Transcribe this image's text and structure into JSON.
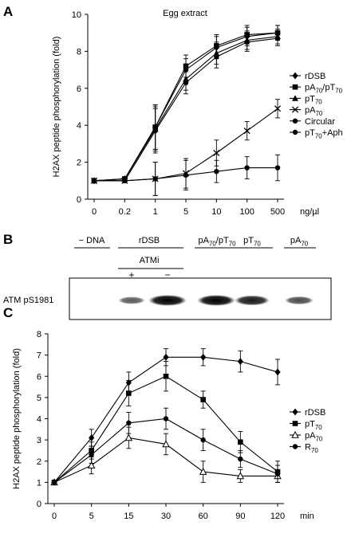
{
  "panels": {
    "a": "A",
    "b": "B",
    "c": "C"
  },
  "chart_data": [
    {
      "panel": "A",
      "type": "line",
      "title": "Egg extract",
      "ylabel": "H2AX peptide phosphorylation (fold)",
      "xunit": "ng/µl",
      "categories": [
        "0",
        "0.2",
        "1",
        "5",
        "10",
        "100",
        "500"
      ],
      "ylim": [
        0,
        10
      ],
      "yticks": [
        0,
        2,
        4,
        6,
        8,
        10
      ],
      "legend_position": "right",
      "series": [
        {
          "name": "rDSB",
          "marker": "diamond",
          "values": [
            1.0,
            1.1,
            3.9,
            7.0,
            8.2,
            8.8,
            9.0
          ],
          "err": [
            0.1,
            0.1,
            1.2,
            0.6,
            0.6,
            0.5,
            0.4
          ]
        },
        {
          "name": "pA70/pT70",
          "sub": [
            "A",
            "70",
            "/pT",
            "70"
          ],
          "marker": "square",
          "values": [
            1.0,
            1.1,
            3.9,
            7.2,
            8.3,
            8.9,
            9.0
          ],
          "err": [
            0.1,
            0.1,
            1.2,
            0.6,
            0.6,
            0.5,
            0.4
          ]
        },
        {
          "name": "pT70",
          "marker": "triangle",
          "values": [
            1.0,
            1.1,
            3.8,
            6.5,
            7.9,
            8.6,
            8.8
          ],
          "err": [
            0.1,
            0.1,
            1.2,
            0.6,
            0.6,
            0.5,
            0.4
          ]
        },
        {
          "name": "pA70",
          "marker": "cross",
          "values": [
            1.0,
            1.0,
            1.1,
            1.4,
            2.5,
            3.7,
            4.9
          ],
          "err": [
            0.1,
            0.1,
            0.9,
            0.8,
            0.7,
            0.5,
            0.5
          ]
        },
        {
          "name": "Circular",
          "marker": "circle",
          "values": [
            1.0,
            1.0,
            3.7,
            6.3,
            7.7,
            8.5,
            8.7
          ],
          "err": [
            0.1,
            0.1,
            1.2,
            0.6,
            0.6,
            0.5,
            0.4
          ]
        },
        {
          "name": "pT70+Aph",
          "marker": "circle",
          "values": [
            1.0,
            1.0,
            1.1,
            1.3,
            1.5,
            1.7,
            1.7
          ],
          "err": [
            0.1,
            0.1,
            0.9,
            0.8,
            0.6,
            0.6,
            0.7
          ]
        }
      ]
    },
    {
      "panel": "B",
      "type": "western-blot",
      "row_label": "ATM pS1981",
      "lanes": [
        {
          "label": "− DNA",
          "intensity": 0.0
        },
        {
          "label": "+",
          "group": "rDSB",
          "subgroup": "ATMi",
          "intensity": 0.45
        },
        {
          "label": "−",
          "group": "rDSB",
          "subgroup": "ATMi",
          "intensity": 1.0
        },
        {
          "label": "pA70/pT70",
          "intensity": 1.0
        },
        {
          "label": "pT70",
          "intensity": 0.85
        },
        {
          "label": "pA70",
          "intensity": 0.55
        }
      ],
      "group_labels": {
        "rDSB": "rDSB",
        "ATMi": "ATMi",
        "minus_dna": "− DNA",
        "pApT": "pA70/pT70",
        "pT": "pT70",
        "pA": "pA70"
      },
      "plus_sign": "+",
      "minus_sign": "−"
    },
    {
      "panel": "C",
      "type": "line",
      "ylabel": "H2AX peptide phosphorylation (fold)",
      "xunit": "min",
      "categories": [
        "0",
        "5",
        "15",
        "30",
        "60",
        "90",
        "120"
      ],
      "ylim": [
        0,
        8
      ],
      "yticks": [
        0,
        1,
        2,
        3,
        4,
        5,
        6,
        7,
        8
      ],
      "legend_position": "right",
      "series": [
        {
          "name": "rDSB",
          "marker": "diamond",
          "values": [
            1.0,
            3.1,
            5.7,
            6.9,
            6.9,
            6.7,
            6.2
          ],
          "err": [
            0.05,
            0.4,
            0.5,
            0.4,
            0.4,
            0.5,
            0.6
          ]
        },
        {
          "name": "pT70",
          "marker": "square",
          "values": [
            1.0,
            2.5,
            5.2,
            6.0,
            4.9,
            2.9,
            1.5
          ],
          "err": [
            0.05,
            0.4,
            0.6,
            0.7,
            0.4,
            0.5,
            0.5
          ]
        },
        {
          "name": "pA70",
          "marker": "triangle-open",
          "values": [
            1.0,
            1.8,
            3.1,
            2.8,
            1.5,
            1.3,
            1.3
          ],
          "err": [
            0.05,
            0.4,
            0.5,
            0.5,
            0.5,
            0.3,
            0.3
          ]
        },
        {
          "name": "R70",
          "marker": "circle",
          "values": [
            1.0,
            2.3,
            3.8,
            4.0,
            3.0,
            2.1,
            1.4
          ],
          "err": [
            0.05,
            0.4,
            0.5,
            0.5,
            0.5,
            0.4,
            0.4
          ]
        }
      ]
    }
  ]
}
